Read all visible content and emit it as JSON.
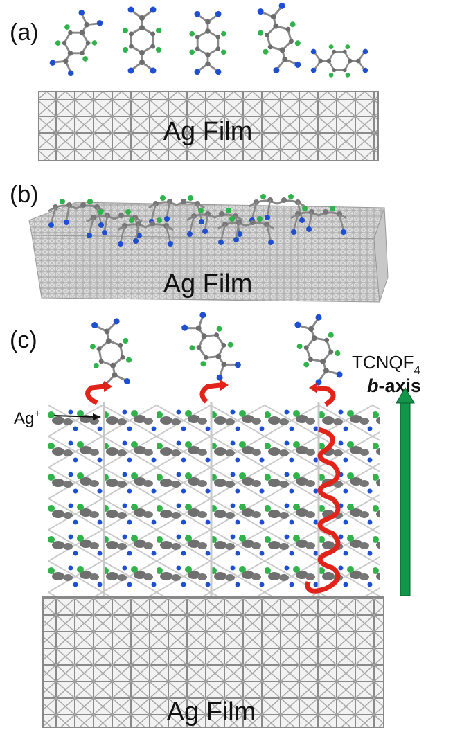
{
  "panels": [
    {
      "label": "(a)",
      "film": "Ag Film"
    },
    {
      "label": "(b)",
      "film": "Ag Film"
    },
    {
      "label": "(c)",
      "film": "Ag Film",
      "molecule": {
        "name": "TCNQF",
        "subscript": "4"
      },
      "axis": {
        "letter": "b",
        "suffix": "-axis"
      },
      "ion": {
        "symbol": "Ag",
        "charge": "+"
      }
    }
  ]
}
